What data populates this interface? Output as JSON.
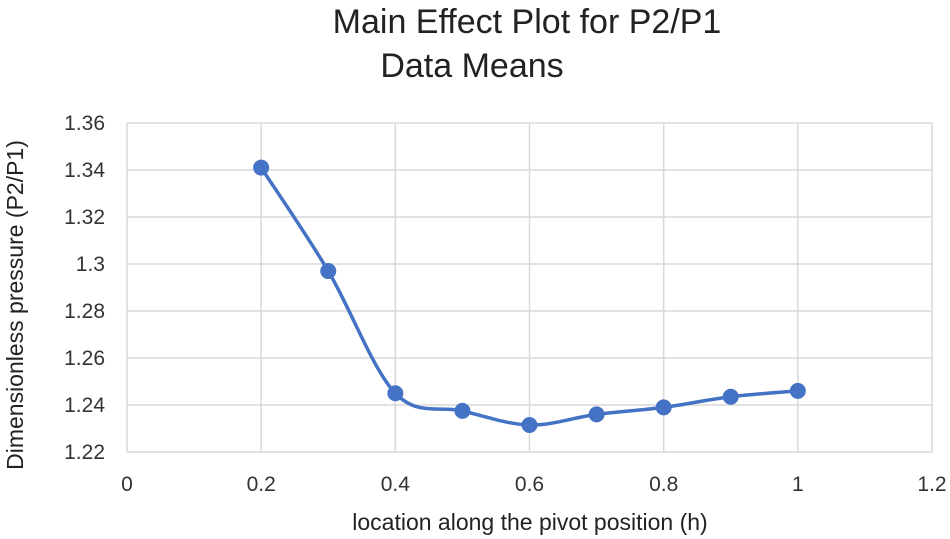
{
  "chart_data": {
    "type": "line",
    "title": "Main Effect Plot for P2/P1",
    "subtitle": "Data Means",
    "xlabel": "location along the pivot position (h)",
    "ylabel": "Dimensionless pressure (P2/P1)",
    "xlim": [
      0,
      1.2
    ],
    "ylim": [
      1.22,
      1.36
    ],
    "x_ticks": [
      "0",
      "0.2",
      "0.4",
      "0.6",
      "0.8",
      "1",
      "1.2"
    ],
    "y_ticks": [
      "1.22",
      "1.24",
      "1.26",
      "1.28",
      "1.3",
      "1.32",
      "1.34",
      "1.36"
    ],
    "grid": true,
    "smooth": true,
    "color": "#4472c4",
    "series": [
      {
        "x": [
          0.2,
          0.3,
          0.4,
          0.5,
          0.6,
          0.7,
          0.8,
          0.9,
          1.0
        ],
        "values": [
          1.341,
          1.297,
          1.245,
          1.2375,
          1.2315,
          1.236,
          1.239,
          1.2435,
          1.246
        ]
      }
    ]
  }
}
